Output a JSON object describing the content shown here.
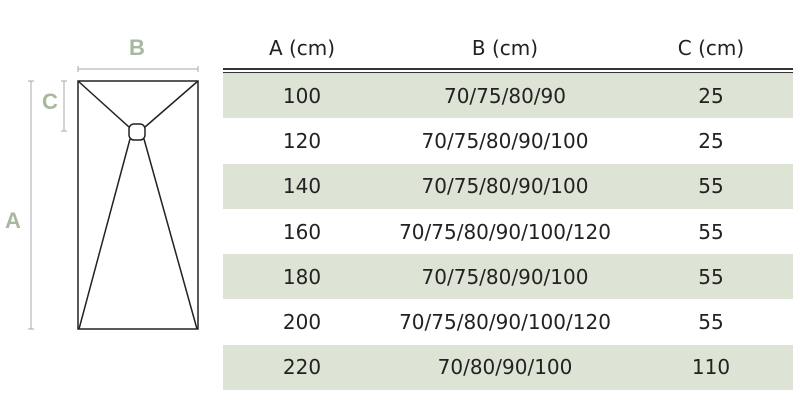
{
  "diagram": {
    "labels": {
      "a": "A",
      "b": "B",
      "c": "C"
    },
    "label_color": "#a7b89e"
  },
  "table": {
    "headers": [
      "A (cm)",
      "B (cm)",
      "C (cm)"
    ],
    "shade_color": "#dde3d5",
    "rows": [
      {
        "a": "100",
        "b": "70/75/80/90",
        "c": "25"
      },
      {
        "a": "120",
        "b": "70/75/80/90/100",
        "c": "25"
      },
      {
        "a": "140",
        "b": "70/75/80/90/100",
        "c": "55"
      },
      {
        "a": "160",
        "b": "70/75/80/90/100/120",
        "c": "55"
      },
      {
        "a": "180",
        "b": "70/75/80/90/100",
        "c": "55"
      },
      {
        "a": "200",
        "b": "70/75/80/90/100/120",
        "c": "55"
      },
      {
        "a": "220",
        "b": "70/80/90/100",
        "c": "110"
      }
    ]
  }
}
